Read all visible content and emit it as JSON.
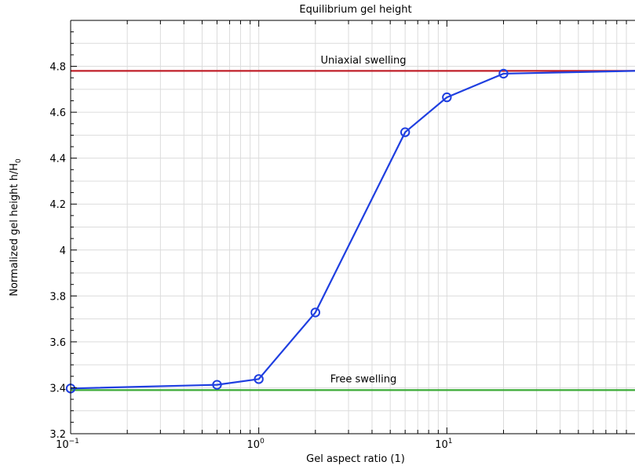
{
  "chart_data": {
    "type": "line",
    "title": "Equilibrium gel height",
    "xlabel": "Gel aspect ratio (1)",
    "ylabel": "Normalized gel height h/H",
    "ylabel_subscript": "0",
    "x_scale": "log",
    "xlim": [
      0.1,
      100
    ],
    "ylim": [
      3.2,
      5.0
    ],
    "y_ticks": [
      3.2,
      3.4,
      3.6,
      3.8,
      4,
      4.2,
      4.4,
      4.6,
      4.8
    ],
    "y_tick_labels": [
      "3.2",
      "3.4",
      "3.6",
      "3.8",
      "4",
      "4.2",
      "4.4",
      "4.6",
      "4.8"
    ],
    "x_major_ticks": [
      {
        "value": 0.1,
        "base": "10",
        "exp": "−1"
      },
      {
        "value": 1,
        "base": "10",
        "exp": "0"
      },
      {
        "value": 10,
        "base": "10",
        "exp": "1"
      }
    ],
    "grid": true,
    "series": [
      {
        "color": "#1f3fe0",
        "marker": "open-circle",
        "x": [
          0.1,
          0.6,
          1,
          2,
          6,
          10,
          20,
          100
        ],
        "y": [
          3.397,
          3.413,
          3.438,
          3.728,
          4.513,
          4.665,
          4.768,
          4.78
        ],
        "marker_x": [
          0.1,
          0.6,
          1,
          2,
          6,
          10,
          20
        ]
      }
    ],
    "reference_lines": [
      {
        "label": "Uniaxial swelling",
        "y": 4.78,
        "color": "#c0202a",
        "label_x": 3.6,
        "label_y": 4.83
      },
      {
        "label": "Free swelling",
        "y": 3.39,
        "color": "#3aaa35",
        "label_x": 3.6,
        "label_y": 3.44
      }
    ]
  }
}
